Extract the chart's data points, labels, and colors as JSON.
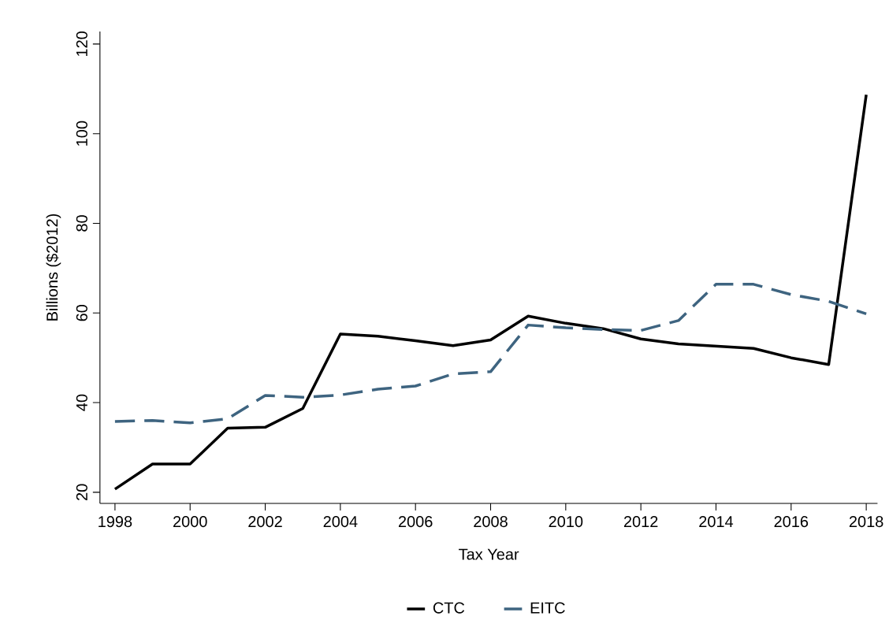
{
  "chart_data": {
    "type": "line",
    "xlabel": "Tax Year",
    "ylabel": "Billions ($2012)",
    "x": [
      1998,
      1999,
      2000,
      2001,
      2002,
      2003,
      2004,
      2005,
      2006,
      2007,
      2008,
      2009,
      2010,
      2011,
      2012,
      2013,
      2014,
      2015,
      2016,
      2017,
      2018
    ],
    "series": [
      {
        "name": "CTC",
        "color": "#000000",
        "line_style": "solid",
        "values": [
          20.7,
          26.3,
          26.3,
          34.3,
          34.5,
          38.7,
          55.3,
          54.8,
          53.8,
          52.7,
          54.0,
          59.3,
          57.7,
          56.5,
          54.2,
          53.1,
          52.6,
          52.1,
          50.0,
          48.5,
          108.7
        ]
      },
      {
        "name": "EITC",
        "color": "#3e6480",
        "line_style": "dashed",
        "values": [
          35.8,
          36.0,
          35.5,
          36.4,
          41.6,
          41.2,
          41.7,
          43.0,
          43.7,
          46.4,
          46.9,
          57.3,
          56.7,
          56.3,
          56.1,
          58.3,
          66.4,
          66.4,
          64.1,
          62.6,
          59.8
        ]
      }
    ],
    "xlim": [
      1997.6,
      2018.3
    ],
    "ylim": [
      17.5,
      122.8
    ],
    "xticks": [
      1998,
      2000,
      2002,
      2004,
      2006,
      2008,
      2010,
      2012,
      2014,
      2016,
      2018
    ],
    "yticks": [
      20,
      40,
      60,
      80,
      100,
      120
    ],
    "legend": "bottom"
  }
}
